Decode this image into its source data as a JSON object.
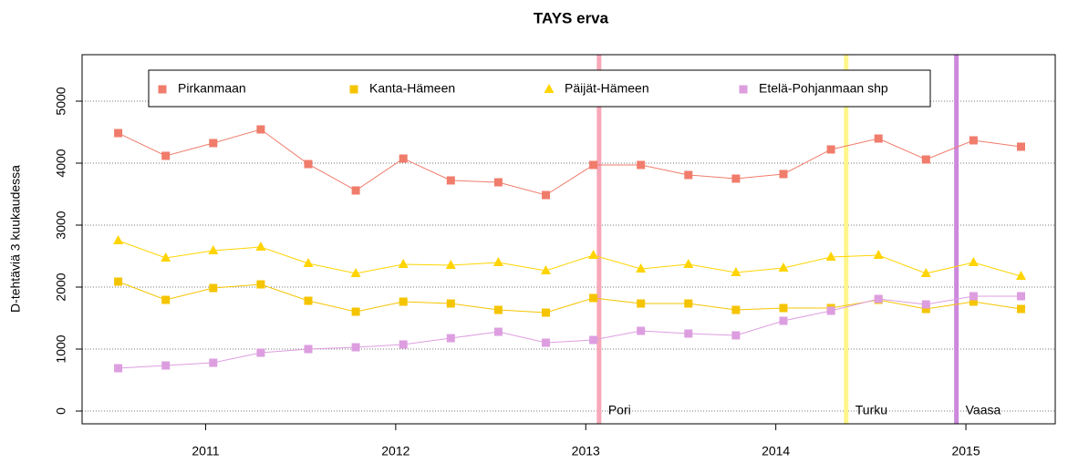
{
  "chart_data": {
    "type": "line",
    "title": "TAYS erva",
    "y_label": "D-tehtäviä 3 kuukaudessa",
    "x": [
      2010.54,
      2010.79,
      2011.04,
      2011.29,
      2011.54,
      2011.79,
      2012.04,
      2012.29,
      2012.54,
      2012.79,
      2013.04,
      2013.29,
      2013.54,
      2013.79,
      2014.04,
      2014.29,
      2014.54,
      2014.79,
      2015.04,
      2015.29
    ],
    "series": [
      {
        "name": "Pirkanmaan",
        "color": "#f07c6c",
        "marker": "square",
        "values": [
          4485,
          4118,
          4324,
          4544,
          3985,
          3559,
          4074,
          3721,
          3691,
          3485,
          3971,
          3971,
          3809,
          3750,
          3824,
          4221,
          4397,
          4059,
          4368,
          4265
        ]
      },
      {
        "name": "Kanta-Hämeen",
        "color": "#f5c400",
        "marker": "square",
        "values": [
          2088,
          1794,
          1985,
          2044,
          1779,
          1603,
          1765,
          1735,
          1632,
          1588,
          1824,
          1735,
          1735,
          1632,
          1662,
          1662,
          1794,
          1647,
          1765,
          1647
        ]
      },
      {
        "name": "Päijät-Hämeen",
        "color": "#ffd400",
        "marker": "triangle",
        "values": [
          2750,
          2471,
          2588,
          2647,
          2382,
          2221,
          2368,
          2353,
          2397,
          2265,
          2515,
          2294,
          2368,
          2235,
          2309,
          2485,
          2515,
          2221,
          2397,
          2176
        ]
      },
      {
        "name": "Etelä-Pohjanmaan shp",
        "color": "#dd9ee0",
        "marker": "square",
        "values": [
          691,
          735,
          779,
          941,
          1000,
          1029,
          1074,
          1176,
          1279,
          1103,
          1147,
          1294,
          1250,
          1221,
          1456,
          1618,
          1809,
          1721,
          1853,
          1853
        ]
      }
    ],
    "vlines": [
      {
        "x": 2013.07,
        "label": "Pori",
        "color": "#f7a8b8"
      },
      {
        "x": 2014.37,
        "label": "Turku",
        "color": "#fff68c"
      },
      {
        "x": 2014.95,
        "label": "Vaasa",
        "color": "#cc88dd"
      }
    ],
    "xlim": [
      2010.35,
      2015.47
    ],
    "xticks": [
      2011,
      2012,
      2013,
      2014,
      2015
    ],
    "ylim": [
      -206,
      5750
    ],
    "yticks": [
      0,
      1000,
      2000,
      3000,
      4000,
      5000
    ],
    "grid": true
  }
}
